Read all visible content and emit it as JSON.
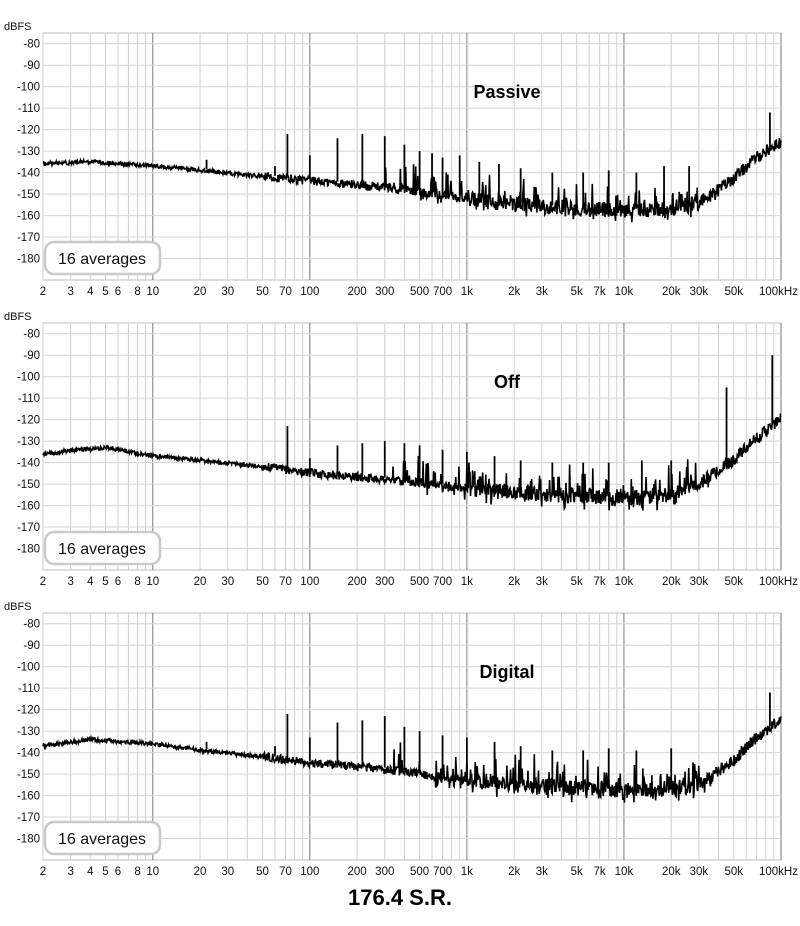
{
  "figure": {
    "caption": "176.4 S.R."
  },
  "chart_data": [
    {
      "type": "line",
      "title": "Passive",
      "ylabel": "dBFS",
      "xlabel": "",
      "x_unit_label": "100kHz",
      "x_scale": "log",
      "xlim": [
        2,
        100000
      ],
      "ylim": [
        -190,
        -75
      ],
      "grid": true,
      "averages_label": "16 averages",
      "xticks": [
        2,
        3,
        4,
        5,
        6,
        8,
        10,
        20,
        30,
        50,
        70,
        100,
        200,
        300,
        500,
        700,
        1000,
        2000,
        3000,
        5000,
        7000,
        10000,
        20000,
        30000,
        50000
      ],
      "xtick_labels": [
        "2",
        "3",
        "4",
        "5",
        "6",
        "8",
        "10",
        "20",
        "30",
        "50",
        "70",
        "100",
        "200",
        "300",
        "500",
        "700",
        "1k",
        "2k",
        "3k",
        "5k",
        "7k",
        "10k",
        "20k",
        "30k",
        "50k"
      ],
      "yticks": [
        -80,
        -90,
        -100,
        -110,
        -120,
        -130,
        -140,
        -150,
        -160,
        -170,
        -180
      ],
      "ytick_labels": [
        "-80",
        "-90",
        "-100",
        "-110",
        "-120",
        "-130",
        "-140",
        "-150",
        "-160",
        "-170",
        "-180"
      ],
      "noise_floor": [
        {
          "f": 2,
          "db": -136
        },
        {
          "f": 4,
          "db": -135
        },
        {
          "f": 10,
          "db": -137
        },
        {
          "f": 20,
          "db": -139
        },
        {
          "f": 50,
          "db": -142
        },
        {
          "f": 100,
          "db": -144
        },
        {
          "f": 300,
          "db": -147
        },
        {
          "f": 1000,
          "db": -152
        },
        {
          "f": 3000,
          "db": -156
        },
        {
          "f": 10000,
          "db": -158
        },
        {
          "f": 20000,
          "db": -157
        },
        {
          "f": 30000,
          "db": -154
        },
        {
          "f": 50000,
          "db": -143
        },
        {
          "f": 70000,
          "db": -133
        },
        {
          "f": 100000,
          "db": -126
        }
      ],
      "peaks": [
        {
          "f": 22,
          "db": -134
        },
        {
          "f": 60,
          "db": -137
        },
        {
          "f": 72,
          "db": -122
        },
        {
          "f": 100,
          "db": -132
        },
        {
          "f": 150,
          "db": -124
        },
        {
          "f": 216,
          "db": -122
        },
        {
          "f": 300,
          "db": -123
        },
        {
          "f": 400,
          "db": -127
        },
        {
          "f": 500,
          "db": -130
        },
        {
          "f": 600,
          "db": -131
        },
        {
          "f": 700,
          "db": -133
        },
        {
          "f": 900,
          "db": -132
        },
        {
          "f": 1200,
          "db": -135
        },
        {
          "f": 1600,
          "db": -136
        },
        {
          "f": 2200,
          "db": -138
        },
        {
          "f": 3500,
          "db": -140
        },
        {
          "f": 5500,
          "db": -140
        },
        {
          "f": 8000,
          "db": -139
        },
        {
          "f": 12000,
          "db": -140
        },
        {
          "f": 18000,
          "db": -137
        },
        {
          "f": 26000,
          "db": -137
        },
        {
          "f": 85000,
          "db": -112
        }
      ]
    },
    {
      "type": "line",
      "title": "Off",
      "ylabel": "dBFS",
      "xlabel": "",
      "x_unit_label": "100kHz",
      "x_scale": "log",
      "xlim": [
        2,
        100000
      ],
      "ylim": [
        -190,
        -75
      ],
      "grid": true,
      "averages_label": "16 averages",
      "xticks": [
        2,
        3,
        4,
        5,
        6,
        8,
        10,
        20,
        30,
        50,
        70,
        100,
        200,
        300,
        500,
        700,
        1000,
        2000,
        3000,
        5000,
        7000,
        10000,
        20000,
        30000,
        50000
      ],
      "xtick_labels": [
        "2",
        "3",
        "4",
        "5",
        "6",
        "8",
        "10",
        "20",
        "30",
        "50",
        "70",
        "100",
        "200",
        "300",
        "500",
        "700",
        "1k",
        "2k",
        "3k",
        "5k",
        "7k",
        "10k",
        "20k",
        "30k",
        "50k"
      ],
      "yticks": [
        -80,
        -90,
        -100,
        -110,
        -120,
        -130,
        -140,
        -150,
        -160,
        -170,
        -180
      ],
      "ytick_labels": [
        "-80",
        "-90",
        "-100",
        "-110",
        "-120",
        "-130",
        "-140",
        "-150",
        "-160",
        "-170",
        "-180"
      ],
      "noise_floor": [
        {
          "f": 2,
          "db": -136
        },
        {
          "f": 5,
          "db": -133
        },
        {
          "f": 10,
          "db": -137
        },
        {
          "f": 20,
          "db": -139
        },
        {
          "f": 50,
          "db": -142
        },
        {
          "f": 100,
          "db": -145
        },
        {
          "f": 300,
          "db": -148
        },
        {
          "f": 1000,
          "db": -152
        },
        {
          "f": 3000,
          "db": -155
        },
        {
          "f": 10000,
          "db": -157
        },
        {
          "f": 20000,
          "db": -155
        },
        {
          "f": 30000,
          "db": -150
        },
        {
          "f": 50000,
          "db": -139
        },
        {
          "f": 70000,
          "db": -129
        },
        {
          "f": 100000,
          "db": -120
        }
      ],
      "peaks": [
        {
          "f": 72,
          "db": -123
        },
        {
          "f": 100,
          "db": -138
        },
        {
          "f": 150,
          "db": -132
        },
        {
          "f": 216,
          "db": -131
        },
        {
          "f": 300,
          "db": -130
        },
        {
          "f": 400,
          "db": -131
        },
        {
          "f": 500,
          "db": -132
        },
        {
          "f": 700,
          "db": -134
        },
        {
          "f": 1000,
          "db": -135
        },
        {
          "f": 1500,
          "db": -137
        },
        {
          "f": 2200,
          "db": -139
        },
        {
          "f": 3500,
          "db": -140
        },
        {
          "f": 5500,
          "db": -140
        },
        {
          "f": 8000,
          "db": -140
        },
        {
          "f": 13000,
          "db": -139
        },
        {
          "f": 20000,
          "db": -139
        },
        {
          "f": 45000,
          "db": -105
        },
        {
          "f": 88000,
          "db": -90
        }
      ]
    },
    {
      "type": "line",
      "title": "Digital",
      "ylabel": "dBFS",
      "xlabel": "",
      "x_unit_label": "100kHz",
      "x_scale": "log",
      "xlim": [
        2,
        100000
      ],
      "ylim": [
        -190,
        -75
      ],
      "grid": true,
      "averages_label": "16 averages",
      "xticks": [
        2,
        3,
        4,
        5,
        6,
        8,
        10,
        20,
        30,
        50,
        70,
        100,
        200,
        300,
        500,
        700,
        1000,
        2000,
        3000,
        5000,
        7000,
        10000,
        20000,
        30000,
        50000
      ],
      "xtick_labels": [
        "2",
        "3",
        "4",
        "5",
        "6",
        "8",
        "10",
        "20",
        "30",
        "50",
        "70",
        "100",
        "200",
        "300",
        "500",
        "700",
        "1k",
        "2k",
        "3k",
        "5k",
        "7k",
        "10k",
        "20k",
        "30k",
        "50k"
      ],
      "yticks": [
        -80,
        -90,
        -100,
        -110,
        -120,
        -130,
        -140,
        -150,
        -160,
        -170,
        -180
      ],
      "ytick_labels": [
        "-80",
        "-90",
        "-100",
        "-110",
        "-120",
        "-130",
        "-140",
        "-150",
        "-160",
        "-170",
        "-180"
      ],
      "noise_floor": [
        {
          "f": 2,
          "db": -137
        },
        {
          "f": 4,
          "db": -134
        },
        {
          "f": 10,
          "db": -136
        },
        {
          "f": 20,
          "db": -139
        },
        {
          "f": 50,
          "db": -142
        },
        {
          "f": 100,
          "db": -145
        },
        {
          "f": 300,
          "db": -148
        },
        {
          "f": 1000,
          "db": -153
        },
        {
          "f": 3000,
          "db": -156
        },
        {
          "f": 10000,
          "db": -158
        },
        {
          "f": 20000,
          "db": -157
        },
        {
          "f": 30000,
          "db": -155
        },
        {
          "f": 50000,
          "db": -144
        },
        {
          "f": 70000,
          "db": -133
        },
        {
          "f": 100000,
          "db": -125
        }
      ],
      "peaks": [
        {
          "f": 22,
          "db": -135
        },
        {
          "f": 60,
          "db": -137
        },
        {
          "f": 72,
          "db": -122
        },
        {
          "f": 100,
          "db": -133
        },
        {
          "f": 150,
          "db": -126
        },
        {
          "f": 216,
          "db": -125
        },
        {
          "f": 300,
          "db": -123
        },
        {
          "f": 400,
          "db": -128
        },
        {
          "f": 500,
          "db": -130
        },
        {
          "f": 700,
          "db": -132
        },
        {
          "f": 1000,
          "db": -133
        },
        {
          "f": 1500,
          "db": -135
        },
        {
          "f": 2200,
          "db": -137
        },
        {
          "f": 3500,
          "db": -139
        },
        {
          "f": 5500,
          "db": -139
        },
        {
          "f": 8000,
          "db": -138
        },
        {
          "f": 12000,
          "db": -139
        },
        {
          "f": 20000,
          "db": -138
        },
        {
          "f": 85000,
          "db": -112
        }
      ]
    }
  ]
}
